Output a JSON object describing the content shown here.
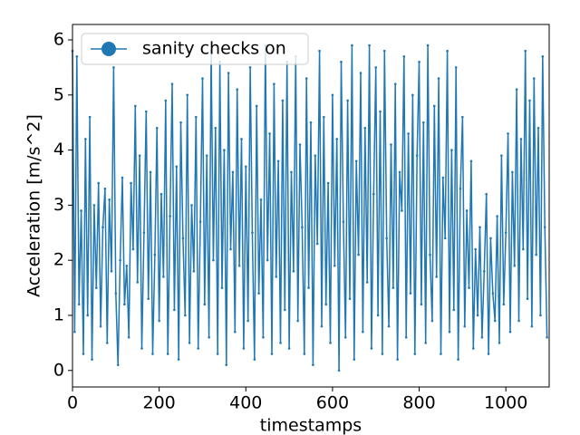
{
  "chart_data": {
    "type": "line",
    "xlabel": "timestamps",
    "ylabel": "Acceleration [m/s^2]",
    "x": [
      0,
      5,
      10,
      15,
      20,
      25,
      30,
      35,
      40,
      45,
      50,
      55,
      60,
      65,
      70,
      75,
      80,
      85,
      90,
      95,
      100,
      105,
      110,
      115,
      120,
      125,
      130,
      135,
      140,
      145,
      150,
      155,
      160,
      165,
      170,
      175,
      180,
      185,
      190,
      195,
      200,
      205,
      210,
      215,
      220,
      225,
      230,
      235,
      240,
      245,
      250,
      255,
      260,
      265,
      270,
      275,
      280,
      285,
      290,
      295,
      300,
      305,
      310,
      315,
      320,
      325,
      330,
      335,
      340,
      345,
      350,
      355,
      360,
      365,
      370,
      375,
      380,
      385,
      390,
      395,
      400,
      405,
      410,
      415,
      420,
      425,
      430,
      435,
      440,
      445,
      450,
      455,
      460,
      465,
      470,
      475,
      480,
      485,
      490,
      495,
      500,
      505,
      510,
      515,
      520,
      525,
      530,
      535,
      540,
      545,
      550,
      555,
      560,
      565,
      570,
      575,
      580,
      585,
      590,
      595,
      600,
      605,
      610,
      615,
      620,
      625,
      630,
      635,
      640,
      645,
      650,
      655,
      660,
      665,
      670,
      675,
      680,
      685,
      690,
      695,
      700,
      705,
      710,
      715,
      720,
      725,
      730,
      735,
      740,
      745,
      750,
      755,
      760,
      765,
      770,
      775,
      780,
      785,
      790,
      795,
      800,
      805,
      810,
      815,
      820,
      825,
      830,
      835,
      840,
      845,
      850,
      855,
      860,
      865,
      870,
      875,
      880,
      885,
      890,
      895,
      900,
      905,
      910,
      915,
      920,
      925,
      930,
      935,
      940,
      945,
      950,
      955,
      960,
      965,
      970,
      975,
      980,
      985,
      990,
      995,
      1000,
      1005,
      1010,
      1015,
      1020,
      1025,
      1030,
      1035,
      1040,
      1045,
      1050,
      1055,
      1060,
      1065,
      1070,
      1075,
      1080,
      1085,
      1090,
      1095
    ],
    "series": [
      {
        "name": "sanity checks on",
        "color": "#1f77b4",
        "values": [
          5.8,
          0.7,
          5.7,
          1.2,
          2.9,
          0.3,
          4.2,
          1.0,
          4.6,
          0.2,
          3.0,
          1.5,
          3.4,
          0.8,
          2.6,
          3.3,
          0.5,
          3.1,
          1.8,
          5.5,
          1.4,
          0.1,
          2.0,
          3.5,
          1.2,
          1.9,
          0.6,
          3.4,
          2.2,
          4.8,
          1.6,
          3.9,
          0.4,
          2.5,
          4.7,
          1.3,
          3.6,
          0.3,
          2.1,
          4.4,
          0.9,
          3.2,
          1.7,
          4.9,
          0.3,
          2.8,
          5.2,
          1.1,
          3.7,
          0.2,
          4.5,
          2.4,
          1.0,
          5.0,
          0.5,
          3.0,
          1.8,
          4.6,
          0.4,
          2.7,
          5.3,
          1.2,
          3.9,
          0.6,
          5.8,
          2.0,
          4.4,
          0.3,
          5.6,
          1.5,
          4.0,
          0.1,
          5.4,
          2.2,
          3.6,
          0.7,
          5.1,
          1.9,
          4.2,
          0.4,
          3.7,
          0.9,
          5.5,
          2.5,
          0.2,
          4.8,
          1.4,
          3.1,
          0.6,
          5.9,
          2.0,
          4.3,
          0.3,
          5.2,
          1.7,
          3.8,
          0.5,
          4.9,
          1.1,
          5.6,
          0.4,
          3.6,
          1.8,
          5.7,
          0.9,
          4.1,
          2.6,
          0.3,
          5.3,
          1.5,
          4.5,
          0.1,
          3.9,
          2.3,
          5.8,
          0.8,
          4.6,
          1.2,
          3.4,
          0.5,
          5.0,
          1.9,
          4.2,
          0.0,
          5.6,
          2.7,
          0.6,
          4.9,
          1.3,
          5.9,
          0.2,
          3.8,
          2.1,
          5.4,
          0.7,
          4.4,
          1.6,
          5.9,
          0.4,
          3.2,
          5.5,
          1.0,
          4.7,
          0.3,
          5.8,
          2.4,
          0.8,
          4.1,
          1.5,
          5.2,
          0.2,
          3.6,
          2.9,
          5.7,
          0.6,
          4.3,
          1.4,
          5.0,
          0.3,
          3.9,
          5.6,
          1.2,
          4.5,
          0.5,
          5.9,
          2.1,
          0.9,
          4.8,
          1.7,
          5.3,
          0.3,
          3.5,
          2.4,
          5.8,
          0.7,
          4.0,
          1.1,
          5.5,
          0.2,
          3.3,
          4.6,
          0.8,
          2.9,
          1.5,
          3.8,
          0.4,
          2.2,
          1.0,
          2.6,
          0.6,
          1.8,
          3.2,
          0.3,
          2.4,
          1.4,
          0.9,
          2.8,
          0.5,
          3.9,
          1.2,
          2.5,
          4.3,
          0.7,
          3.6,
          1.9,
          5.1,
          0.9,
          4.2,
          2.2,
          5.8,
          1.3,
          4.9,
          0.8,
          5.3,
          2.1,
          4.4,
          1.0,
          5.7,
          2.6,
          0.6
        ]
      }
    ],
    "xlim": [
      0,
      1100
    ],
    "ylim": [
      -0.3,
      6.28
    ],
    "xticks": [
      0,
      200,
      400,
      600,
      800,
      1000
    ],
    "yticks": [
      0,
      1,
      2,
      3,
      4,
      5,
      6
    ],
    "legend": "upper left",
    "marker": "o"
  }
}
